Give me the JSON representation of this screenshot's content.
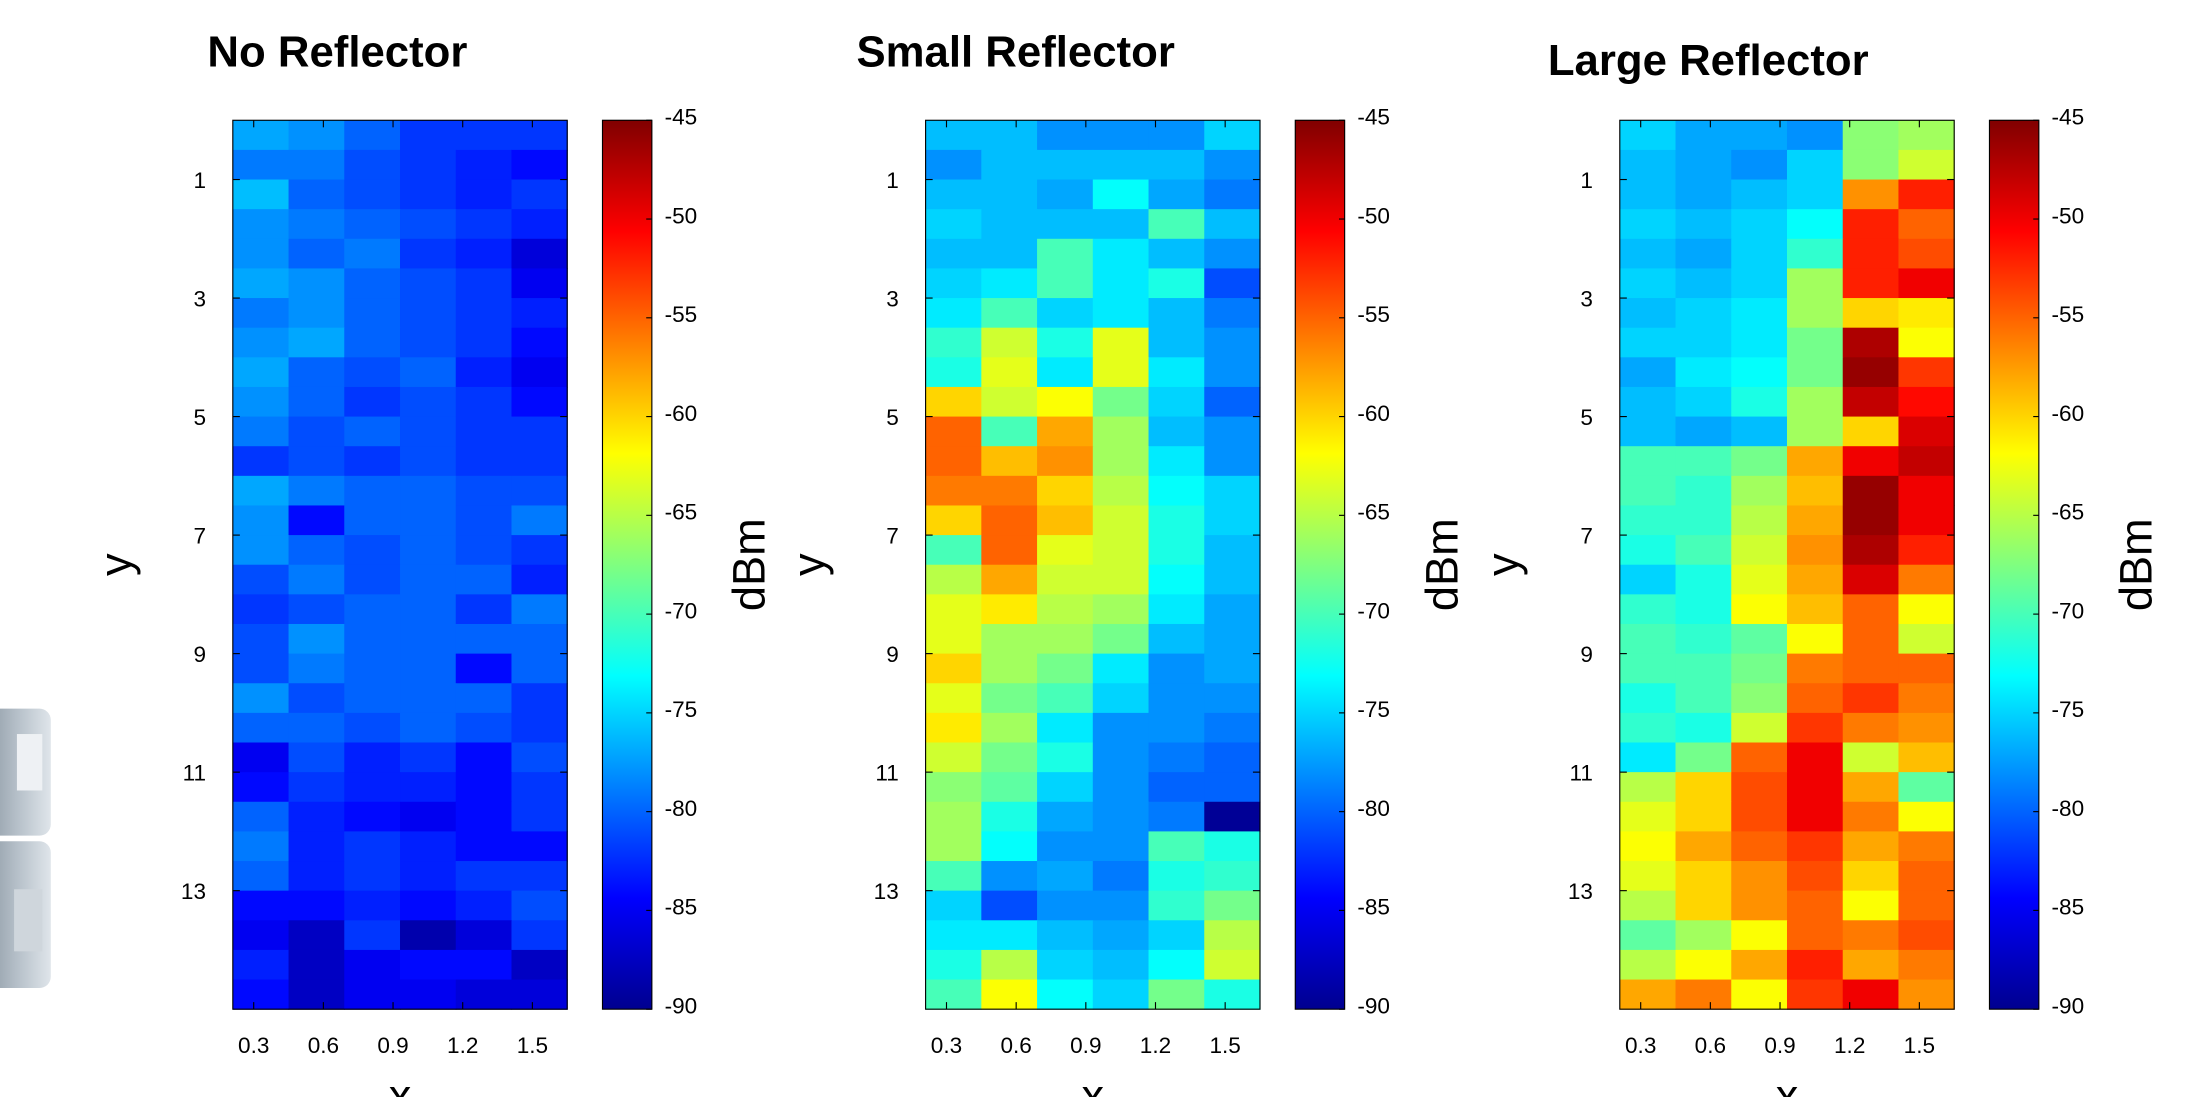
{
  "chart_data": [
    {
      "type": "heatmap",
      "title": "No Reflector",
      "xlabel": "x",
      "ylabel": "y",
      "colorbar_label": "dBm",
      "colormap": "jet",
      "x": [
        0.33,
        0.57,
        0.81,
        1.05,
        1.29,
        1.53
      ],
      "y": [
        0.25,
        0.75,
        1.25,
        1.75,
        2.25,
        2.75,
        3.25,
        3.75,
        4.25,
        4.75,
        5.25,
        5.75,
        6.25,
        6.75,
        7.25,
        7.75,
        8.25,
        8.75,
        9.25,
        9.75,
        10.25,
        10.75,
        11.25,
        11.75,
        12.25,
        12.75,
        13.25,
        13.75,
        14.25,
        14.75
      ],
      "z": [
        [
          -77,
          -78,
          -80,
          -82,
          -82,
          -82
        ],
        [
          -79,
          -79,
          -81,
          -82,
          -83,
          -84
        ],
        [
          -76,
          -80,
          -81,
          -82,
          -83,
          -82
        ],
        [
          -78,
          -79,
          -80,
          -81,
          -82,
          -83
        ],
        [
          -78,
          -80,
          -79,
          -82,
          -83,
          -86
        ],
        [
          -77,
          -78,
          -80,
          -81,
          -82,
          -85
        ],
        [
          -79,
          -78,
          -80,
          -81,
          -82,
          -83
        ],
        [
          -78,
          -77,
          -80,
          -81,
          -82,
          -84
        ],
        [
          -77,
          -80,
          -81,
          -80,
          -83,
          -85
        ],
        [
          -78,
          -80,
          -82,
          -81,
          -82,
          -84
        ],
        [
          -79,
          -81,
          -80,
          -81,
          -82,
          -82
        ],
        [
          -82,
          -81,
          -82,
          -81,
          -82,
          -82
        ],
        [
          -77,
          -79,
          -80,
          -80,
          -81,
          -81
        ],
        [
          -78,
          -84,
          -80,
          -80,
          -81,
          -79
        ],
        [
          -78,
          -80,
          -81,
          -80,
          -81,
          -82
        ],
        [
          -81,
          -79,
          -81,
          -80,
          -80,
          -83
        ],
        [
          -82,
          -81,
          -80,
          -80,
          -82,
          -79
        ],
        [
          -81,
          -78,
          -80,
          -80,
          -80,
          -80
        ],
        [
          -81,
          -79,
          -80,
          -80,
          -84,
          -80
        ],
        [
          -78,
          -81,
          -80,
          -80,
          -80,
          -82
        ],
        [
          -80,
          -80,
          -81,
          -80,
          -81,
          -82
        ],
        [
          -85,
          -81,
          -83,
          -82,
          -84,
          -81
        ],
        [
          -84,
          -82,
          -83,
          -83,
          -84,
          -82
        ],
        [
          -80,
          -83,
          -84,
          -85,
          -84,
          -82
        ],
        [
          -79,
          -83,
          -82,
          -83,
          -84,
          -84
        ],
        [
          -80,
          -83,
          -82,
          -83,
          -82,
          -82
        ],
        [
          -84,
          -84,
          -83,
          -84,
          -83,
          -81
        ],
        [
          -85,
          -87,
          -82,
          -88,
          -86,
          -82
        ],
        [
          -83,
          -87,
          -85,
          -84,
          -84,
          -87
        ],
        [
          -84,
          -87,
          -85,
          -85,
          -86,
          -86
        ]
      ],
      "xlim": [
        0.21,
        1.65
      ],
      "ylim": [
        0,
        15
      ],
      "xticks": [
        0.3,
        0.6,
        0.9,
        1.2,
        1.5
      ],
      "yticks": [
        1,
        3,
        5,
        7,
        9,
        11,
        13
      ],
      "clim": [
        -90,
        -45
      ],
      "cticks": [
        -45,
        -50,
        -55,
        -60,
        -65,
        -70,
        -75,
        -80,
        -85,
        -90
      ]
    },
    {
      "type": "heatmap",
      "title": "Small Reflector",
      "xlabel": "x",
      "ylabel": "y",
      "colorbar_label": "dBm",
      "colormap": "jet",
      "x": [
        0.33,
        0.57,
        0.81,
        1.05,
        1.29,
        1.53
      ],
      "y": [
        0.25,
        0.75,
        1.25,
        1.75,
        2.25,
        2.75,
        3.25,
        3.75,
        4.25,
        4.75,
        5.25,
        5.75,
        6.25,
        6.75,
        7.25,
        7.75,
        8.25,
        8.75,
        9.25,
        9.75,
        10.25,
        10.75,
        11.25,
        11.75,
        12.25,
        12.75,
        13.25,
        13.75,
        14.25,
        14.75
      ],
      "z": [
        [
          -76,
          -76,
          -78,
          -78,
          -78,
          -75
        ],
        [
          -78,
          -76,
          -76,
          -76,
          -76,
          -78
        ],
        [
          -76,
          -76,
          -77,
          -73,
          -77,
          -79
        ],
        [
          -75,
          -76,
          -76,
          -76,
          -70,
          -76
        ],
        [
          -76,
          -76,
          -70,
          -74,
          -76,
          -78
        ],
        [
          -75,
          -74,
          -70,
          -74,
          -72,
          -81
        ],
        [
          -74,
          -70,
          -75,
          -74,
          -76,
          -79
        ],
        [
          -71,
          -64,
          -72,
          -63,
          -76,
          -78
        ],
        [
          -72,
          -63,
          -74,
          -63,
          -74,
          -78
        ],
        [
          -60,
          -64,
          -62,
          -68,
          -75,
          -80
        ],
        [
          -55,
          -70,
          -58,
          -66,
          -76,
          -78
        ],
        [
          -55,
          -59,
          -57,
          -66,
          -74,
          -78
        ],
        [
          -56,
          -56,
          -60,
          -65,
          -73,
          -75
        ],
        [
          -60,
          -55,
          -59,
          -64,
          -72,
          -75
        ],
        [
          -70,
          -55,
          -63,
          -64,
          -72,
          -76
        ],
        [
          -65,
          -58,
          -64,
          -64,
          -73,
          -76
        ],
        [
          -63,
          -61,
          -65,
          -66,
          -74,
          -77
        ],
        [
          -63,
          -66,
          -66,
          -68,
          -76,
          -77
        ],
        [
          -60,
          -66,
          -68,
          -74,
          -78,
          -77
        ],
        [
          -63,
          -68,
          -70,
          -75,
          -78,
          -78
        ],
        [
          -61,
          -66,
          -74,
          -78,
          -78,
          -79
        ],
        [
          -64,
          -68,
          -72,
          -78,
          -79,
          -80
        ],
        [
          -67,
          -69,
          -75,
          -78,
          -80,
          -80
        ],
        [
          -66,
          -72,
          -77,
          -78,
          -79,
          -89
        ],
        [
          -66,
          -73,
          -78,
          -78,
          -70,
          -72
        ],
        [
          -70,
          -78,
          -77,
          -79,
          -72,
          -71
        ],
        [
          -75,
          -81,
          -78,
          -78,
          -71,
          -68
        ],
        [
          -74,
          -74,
          -76,
          -77,
          -75,
          -65
        ],
        [
          -72,
          -65,
          -75,
          -76,
          -73,
          -64
        ],
        [
          -70,
          -62,
          -73,
          -75,
          -68,
          -72
        ]
      ],
      "xlim": [
        0.21,
        1.65
      ],
      "ylim": [
        0,
        15
      ],
      "xticks": [
        0.3,
        0.6,
        0.9,
        1.2,
        1.5
      ],
      "yticks": [
        1,
        3,
        5,
        7,
        9,
        11,
        13
      ],
      "clim": [
        -90,
        -45
      ],
      "cticks": [
        -45,
        -50,
        -55,
        -60,
        -65,
        -70,
        -75,
        -80,
        -85,
        -90
      ]
    },
    {
      "type": "heatmap",
      "title": "Large Reflector",
      "xlabel": "x",
      "ylabel": "y",
      "colorbar_label": "dBm",
      "colormap": "jet",
      "x": [
        0.33,
        0.57,
        0.81,
        1.05,
        1.29,
        1.53
      ],
      "y": [
        0.25,
        0.75,
        1.25,
        1.75,
        2.25,
        2.75,
        3.25,
        3.75,
        4.25,
        4.75,
        5.25,
        5.75,
        6.25,
        6.75,
        7.25,
        7.75,
        8.25,
        8.75,
        9.25,
        9.75,
        10.25,
        10.75,
        11.25,
        11.75,
        12.25,
        12.75,
        13.25,
        13.75,
        14.25,
        14.75
      ],
      "z": [
        [
          -75,
          -77,
          -77,
          -78,
          -67,
          -66
        ],
        [
          -76,
          -77,
          -78,
          -75,
          -67,
          -64
        ],
        [
          -76,
          -77,
          -76,
          -75,
          -57,
          -52
        ],
        [
          -75,
          -76,
          -75,
          -73,
          -52,
          -55
        ],
        [
          -76,
          -77,
          -75,
          -71,
          -52,
          -54
        ],
        [
          -75,
          -76,
          -75,
          -66,
          -52,
          -50
        ],
        [
          -76,
          -75,
          -74,
          -66,
          -60,
          -61
        ],
        [
          -75,
          -75,
          -74,
          -68,
          -47,
          -62
        ],
        [
          -77,
          -74,
          -73,
          -68,
          -46,
          -53
        ],
        [
          -76,
          -75,
          -72,
          -66,
          -48,
          -51
        ],
        [
          -76,
          -77,
          -76,
          -66,
          -60,
          -49
        ],
        [
          -70,
          -70,
          -68,
          -58,
          -50,
          -48
        ],
        [
          -70,
          -71,
          -66,
          -59,
          -46,
          -50
        ],
        [
          -71,
          -71,
          -65,
          -58,
          -46,
          -50
        ],
        [
          -72,
          -70,
          -64,
          -57,
          -47,
          -52
        ],
        [
          -75,
          -72,
          -63,
          -58,
          -49,
          -56
        ],
        [
          -71,
          -72,
          -62,
          -59,
          -55,
          -62
        ],
        [
          -70,
          -71,
          -69,
          -62,
          -55,
          -64
        ],
        [
          -70,
          -70,
          -68,
          -56,
          -55,
          -55
        ],
        [
          -72,
          -70,
          -67,
          -55,
          -53,
          -56
        ],
        [
          -71,
          -72,
          -64,
          -53,
          -56,
          -57
        ],
        [
          -74,
          -68,
          -55,
          -50,
          -64,
          -59
        ],
        [
          -65,
          -60,
          -54,
          -50,
          -58,
          -69
        ],
        [
          -63,
          -60,
          -54,
          -50,
          -56,
          -62
        ],
        [
          -62,
          -58,
          -55,
          -53,
          -58,
          -56
        ],
        [
          -63,
          -60,
          -57,
          -54,
          -60,
          -55
        ],
        [
          -65,
          -60,
          -57,
          -55,
          -62,
          -55
        ],
        [
          -69,
          -66,
          -62,
          -55,
          -56,
          -54
        ],
        [
          -65,
          -62,
          -58,
          -52,
          -58,
          -56
        ],
        [
          -58,
          -56,
          -62,
          -53,
          -50,
          -57
        ]
      ],
      "xlim": [
        0.21,
        1.65
      ],
      "ylim": [
        0,
        15
      ],
      "xticks": [
        0.3,
        0.6,
        0.9,
        1.2,
        1.5
      ],
      "yticks": [
        1,
        3,
        5,
        7,
        9,
        11,
        13
      ],
      "clim": [
        -90,
        -45
      ],
      "cticks": [
        -45,
        -50,
        -55,
        -60,
        -65,
        -70,
        -75,
        -80,
        -85,
        -90
      ]
    }
  ]
}
